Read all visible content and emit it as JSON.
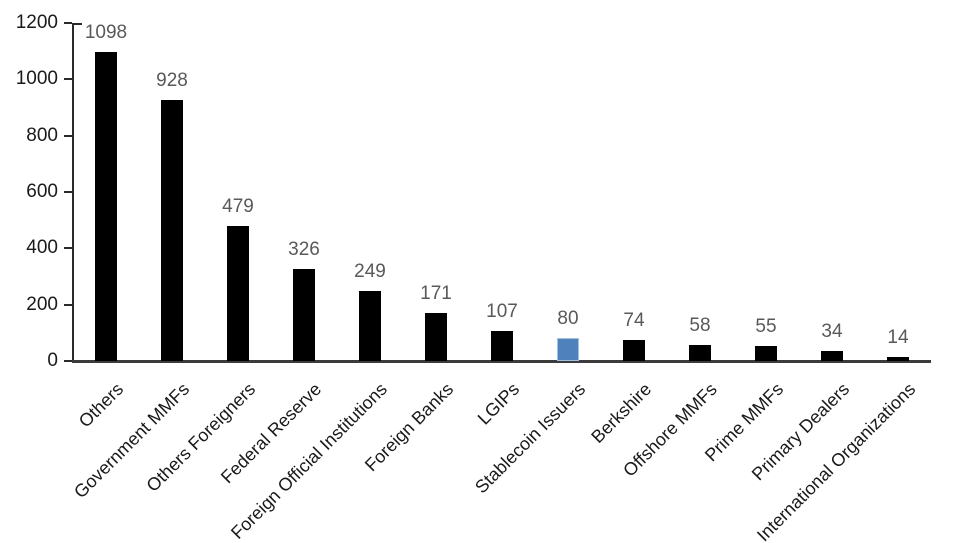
{
  "chart_data": {
    "type": "bar",
    "title": "",
    "xlabel": "",
    "ylabel": "",
    "categories": [
      "Others",
      "Government MMFs",
      "Others Foreigners",
      "Federal Reserve",
      "Foreign Official Institutions",
      "Foreign Banks",
      "LGIPs",
      "Stablecoin Issuers",
      "Berkshire",
      "Offshore MMFs",
      "Prime MMFs",
      "Primary Dealers",
      "International Organizations"
    ],
    "values": [
      1098,
      928,
      479,
      326,
      249,
      171,
      107,
      80,
      74,
      58,
      55,
      34,
      14
    ],
    "data_labels": [
      "1098",
      "928",
      "479",
      "326",
      "249",
      "171",
      "107",
      "80",
      "74",
      "58",
      "55",
      "34",
      "14"
    ],
    "highlight_index": 7,
    "ylim": [
      0,
      1200
    ],
    "yticks": [
      0,
      200,
      400,
      600,
      800,
      1000,
      1200
    ],
    "grid": false,
    "legend": false,
    "colors": {
      "bar_default": "#000000",
      "bar_highlight": "#4f81bd",
      "bar_highlight_border": "#a3c0e0",
      "data_label": "#595959",
      "axis_label": "#1a1a1a",
      "axis_line": "#2b2b2b",
      "baseline": "#3b3b3b"
    }
  }
}
